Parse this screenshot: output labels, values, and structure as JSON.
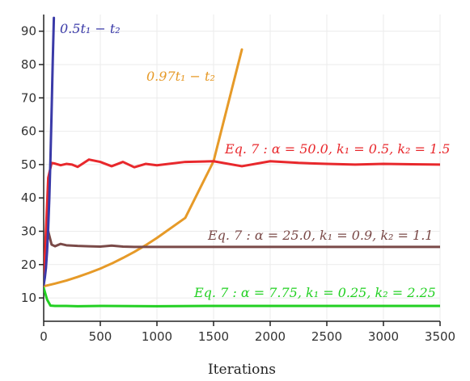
{
  "chart_data": {
    "type": "line",
    "title": "",
    "xlabel": "Iterations",
    "ylabel": "",
    "xlim": [
      0,
      3500
    ],
    "ylim": [
      3,
      95
    ],
    "xticks": [
      0,
      500,
      1000,
      1500,
      2000,
      2500,
      3000,
      3500
    ],
    "yticks": [
      10,
      20,
      30,
      40,
      50,
      60,
      70,
      80,
      90
    ],
    "grid": true,
    "legend": "none",
    "series": [
      {
        "name": "0.5t₁ − t₂",
        "color": "#3a3aa8",
        "x": [
          0,
          10,
          20,
          30,
          40,
          50,
          60,
          70,
          80,
          90
        ],
        "y": [
          14,
          16,
          19,
          24,
          31,
          40,
          52,
          66,
          81,
          94
        ]
      },
      {
        "name": "0.97t₁ − t₂",
        "color": "#e69a28",
        "x": [
          0,
          100,
          200,
          300,
          400,
          500,
          600,
          700,
          800,
          900,
          1000,
          1250,
          1500,
          1750
        ],
        "y": [
          13.5,
          14.3,
          15.2,
          16.3,
          17.5,
          18.8,
          20.3,
          22.0,
          23.8,
          25.8,
          28.0,
          34.0,
          51.0,
          84.5
        ]
      },
      {
        "name": "Eq. 7 : α = 50.0, k₁ = 0.5, k₂ = 1.5",
        "color": "#e8282c",
        "x": [
          0,
          20,
          40,
          70,
          100,
          150,
          200,
          250,
          300,
          400,
          500,
          600,
          700,
          800,
          900,
          1000,
          1250,
          1500,
          1750,
          2000,
          2250,
          2500,
          2750,
          3000,
          3250,
          3500
        ],
        "y": [
          14,
          30,
          46,
          50.5,
          50.3,
          49.8,
          50.2,
          50,
          49.3,
          51.5,
          50.8,
          49.5,
          50.8,
          49.2,
          50.2,
          49.8,
          50.8,
          51,
          49.5,
          51,
          50.5,
          50.2,
          50,
          50.2,
          50.1,
          50
        ]
      },
      {
        "name": "Eq. 7 : α = 25.0, k₁ = 0.9, k₂ = 1.1",
        "color": "#7a4a48",
        "x": [
          0,
          20,
          40,
          70,
          100,
          150,
          200,
          300,
          400,
          500,
          600,
          700,
          800,
          1000,
          1500,
          2000,
          2500,
          3000,
          3500
        ],
        "y": [
          14,
          24,
          30,
          26,
          25.5,
          26.2,
          25.8,
          25.6,
          25.5,
          25.4,
          25.7,
          25.4,
          25.3,
          25.3,
          25.3,
          25.3,
          25.3,
          25.3,
          25.3
        ]
      },
      {
        "name": "Eq. 7 : α = 7.75, k₁ = 0.25, k₂ = 2.25",
        "color": "#22d022",
        "x": [
          0,
          30,
          60,
          100,
          200,
          300,
          500,
          1000,
          1500,
          2000,
          2500,
          3000,
          3500
        ],
        "y": [
          13,
          9.5,
          7.7,
          7.6,
          7.6,
          7.5,
          7.6,
          7.5,
          7.6,
          7.6,
          7.6,
          7.6,
          7.6
        ]
      }
    ]
  }
}
